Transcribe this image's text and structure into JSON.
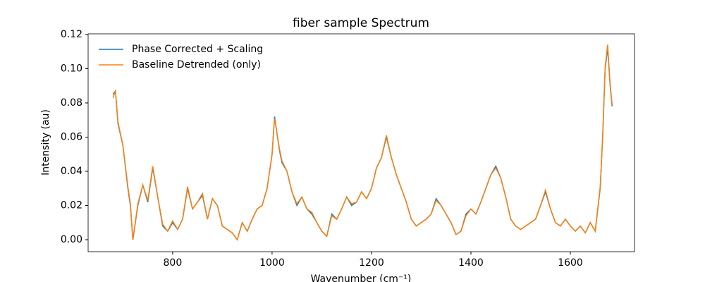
{
  "chart_data": {
    "type": "line",
    "title": "fiber sample Spectrum",
    "x_label": "Wavenumber (cm⁻¹)",
    "y_label": "Intensity (au)",
    "x": [
      680,
      685,
      690,
      700,
      710,
      715,
      720,
      730,
      740,
      750,
      760,
      770,
      780,
      790,
      800,
      810,
      820,
      830,
      840,
      850,
      860,
      870,
      880,
      890,
      900,
      910,
      920,
      930,
      940,
      950,
      960,
      970,
      980,
      990,
      1000,
      1005,
      1015,
      1020,
      1030,
      1040,
      1050,
      1060,
      1070,
      1080,
      1090,
      1100,
      1110,
      1120,
      1130,
      1140,
      1150,
      1160,
      1170,
      1180,
      1190,
      1200,
      1210,
      1220,
      1230,
      1240,
      1250,
      1260,
      1270,
      1280,
      1290,
      1300,
      1310,
      1320,
      1330,
      1340,
      1350,
      1360,
      1370,
      1380,
      1390,
      1400,
      1410,
      1420,
      1430,
      1440,
      1450,
      1460,
      1470,
      1480,
      1490,
      1500,
      1510,
      1520,
      1530,
      1540,
      1550,
      1560,
      1570,
      1580,
      1590,
      1600,
      1610,
      1620,
      1630,
      1640,
      1650,
      1660,
      1665,
      1670,
      1675,
      1680,
      1684
    ],
    "series": [
      {
        "name": "Phase Corrected + Scaling",
        "color": "#1f77b4",
        "values": [
          0.085,
          0.087,
          0.068,
          0.055,
          0.03,
          0.02,
          0.0,
          0.02,
          0.032,
          0.022,
          0.042,
          0.025,
          0.008,
          0.005,
          0.01,
          0.006,
          0.012,
          0.03,
          0.018,
          0.022,
          0.026,
          0.012,
          0.024,
          0.02,
          0.008,
          0.006,
          0.004,
          0.0,
          0.01,
          0.005,
          0.012,
          0.018,
          0.02,
          0.03,
          0.05,
          0.072,
          0.052,
          0.045,
          0.04,
          0.028,
          0.02,
          0.025,
          0.018,
          0.015,
          0.01,
          0.005,
          0.002,
          0.015,
          0.012,
          0.018,
          0.025,
          0.02,
          0.022,
          0.028,
          0.024,
          0.03,
          0.042,
          0.048,
          0.06,
          0.048,
          0.038,
          0.03,
          0.022,
          0.012,
          0.008,
          0.01,
          0.012,
          0.015,
          0.024,
          0.02,
          0.015,
          0.01,
          0.003,
          0.005,
          0.015,
          0.018,
          0.015,
          0.022,
          0.03,
          0.038,
          0.043,
          0.036,
          0.025,
          0.012,
          0.008,
          0.006,
          0.008,
          0.01,
          0.012,
          0.02,
          0.028,
          0.018,
          0.01,
          0.008,
          0.012,
          0.008,
          0.005,
          0.008,
          0.004,
          0.01,
          0.005,
          0.03,
          0.06,
          0.1,
          0.112,
          0.09,
          0.078
        ]
      },
      {
        "name": "Baseline Detrended (only)",
        "color": "#ff7f0e",
        "values": [
          0.083,
          0.087,
          0.069,
          0.055,
          0.031,
          0.021,
          0.0,
          0.021,
          0.032,
          0.023,
          0.043,
          0.025,
          0.009,
          0.005,
          0.011,
          0.006,
          0.012,
          0.031,
          0.018,
          0.022,
          0.027,
          0.012,
          0.024,
          0.02,
          0.008,
          0.006,
          0.004,
          0.0,
          0.01,
          0.005,
          0.012,
          0.018,
          0.02,
          0.03,
          0.05,
          0.071,
          0.053,
          0.046,
          0.04,
          0.028,
          0.021,
          0.025,
          0.018,
          0.016,
          0.01,
          0.005,
          0.002,
          0.014,
          0.012,
          0.018,
          0.025,
          0.021,
          0.022,
          0.028,
          0.024,
          0.03,
          0.042,
          0.048,
          0.061,
          0.048,
          0.038,
          0.03,
          0.022,
          0.012,
          0.008,
          0.01,
          0.012,
          0.015,
          0.023,
          0.02,
          0.015,
          0.01,
          0.003,
          0.005,
          0.014,
          0.018,
          0.015,
          0.022,
          0.03,
          0.038,
          0.042,
          0.036,
          0.025,
          0.012,
          0.008,
          0.006,
          0.008,
          0.01,
          0.012,
          0.02,
          0.029,
          0.018,
          0.01,
          0.008,
          0.012,
          0.008,
          0.005,
          0.008,
          0.004,
          0.01,
          0.005,
          0.031,
          0.061,
          0.101,
          0.114,
          0.091,
          0.079
        ]
      }
    ],
    "xlim": [
      630,
      1729
    ],
    "ylim": [
      -0.007,
      0.1204
    ],
    "xticks": [
      800,
      1000,
      1200,
      1400,
      1600
    ],
    "yticks": [
      {
        "value": 0,
        "label": "0.00"
      },
      0.02,
      0.04,
      0.06,
      0.08,
      {
        "value": 0.1,
        "label": "0.10"
      },
      0.12
    ],
    "legend": "upper left",
    "grid": false
  }
}
